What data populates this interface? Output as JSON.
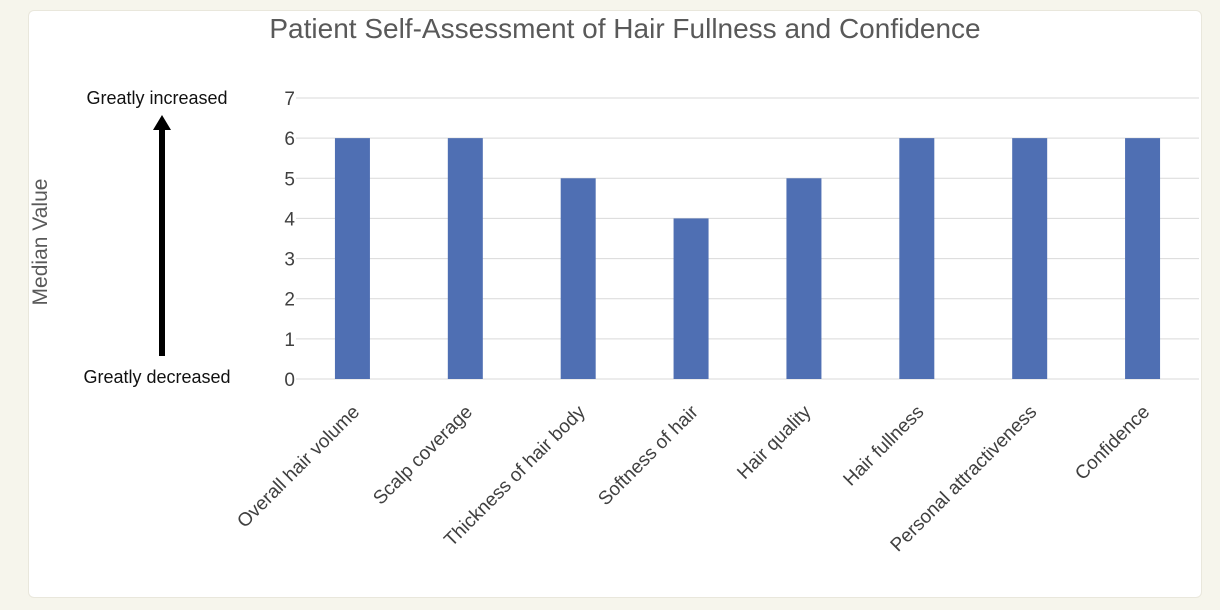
{
  "chart_data": {
    "type": "bar",
    "title": "Patient Self-Assessment of Hair Fullness and Confidence",
    "xlabel": "",
    "ylabel": "Median Value",
    "ylim": [
      0,
      7
    ],
    "yticks": [
      "0",
      "1",
      "2",
      "3",
      "4",
      "5",
      "6",
      "7"
    ],
    "categories": [
      "Overall hair volume",
      "Scalp coverage",
      "Thickness of hair body",
      "Softness of hair",
      "Hair quality",
      "Hair fullness",
      "Personal attractiveness",
      "Confidence"
    ],
    "values": [
      6,
      6,
      5,
      4,
      5,
      6,
      6,
      6
    ],
    "bar_color": "#4f6fb3",
    "grid": true,
    "legend": "none",
    "annotations": {
      "top": "Greatly increased",
      "bottom": "Greatly decreased"
    }
  }
}
